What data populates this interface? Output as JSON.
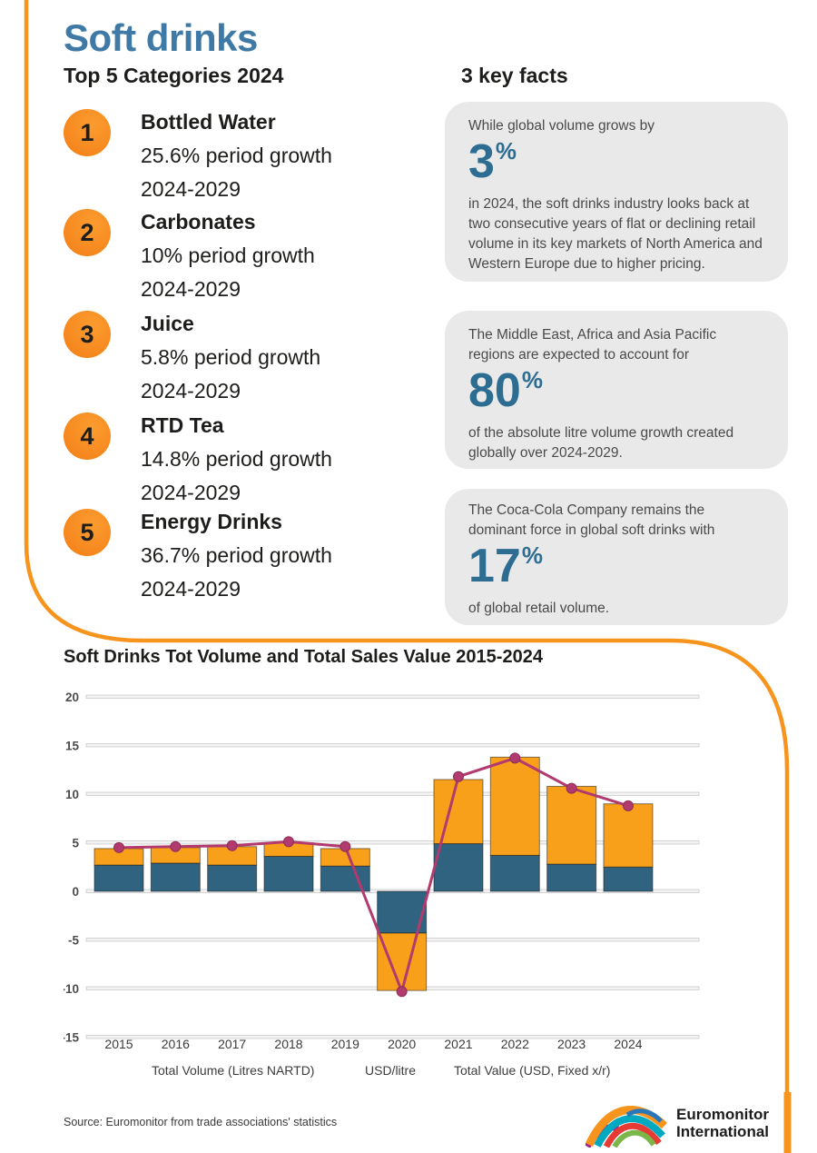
{
  "header": {
    "title": "Soft drinks",
    "left_heading": "Top 5 Categories 2024",
    "right_heading": "3 key facts"
  },
  "categories": [
    {
      "rank": "1",
      "name": "Bottled Water",
      "growth": "25.6% period growth",
      "period": "2024-2029"
    },
    {
      "rank": "2",
      "name": "Carbonates",
      "growth": "10% period growth",
      "period": "2024-2029"
    },
    {
      "rank": "3",
      "name": "Juice",
      "growth": "5.8% period growth",
      "period": "2024-2029"
    },
    {
      "rank": "4",
      "name": "RTD Tea",
      "growth": "14.8% period growth",
      "period": "2024-2029"
    },
    {
      "rank": "5",
      "name": "Energy Drinks",
      "growth": "36.7% period growth",
      "period": "2024-2029"
    }
  ],
  "facts": [
    {
      "intro": "While global volume grows by",
      "stat": "3",
      "unit": "%",
      "body": "in 2024, the soft drinks industry looks back at two consecutive years of flat or declining retail volume in its key markets of North America and Western Europe due to higher pricing."
    },
    {
      "intro": "The Middle East, Africa and Asia Pacific regions are expected to account for",
      "stat": "80",
      "unit": "%",
      "body": "of the absolute litre volume growth created globally over 2024-2029."
    },
    {
      "intro": "The Coca-Cola Company remains the dominant force in global soft drinks with",
      "stat": "17",
      "unit": "%",
      "body": "of global retail volume."
    }
  ],
  "chart": {
    "title": "Soft Drinks Tot Volume and Total Sales Value 2015-2024"
  },
  "chart_data": {
    "type": "combo: stacked bar + line",
    "title": "Soft Drinks Tot Volume and Total Sales Value 2015-2024",
    "categories": [
      "2015",
      "2016",
      "2017",
      "2018",
      "2019",
      "2020",
      "2021",
      "2022",
      "2023",
      "2024"
    ],
    "ylim": [
      -15,
      20
    ],
    "yticks": [
      20,
      15,
      10,
      5,
      0,
      -5,
      -10,
      -15
    ],
    "grid": true,
    "legend_position": "bottom",
    "series": [
      {
        "name": "Total Volume (Litres NARTD)",
        "type": "bar-stack",
        "color": "#2f637f",
        "values": [
          2.7,
          2.9,
          2.7,
          3.6,
          2.6,
          -4.3,
          4.9,
          3.7,
          2.8,
          2.5
        ]
      },
      {
        "name": "USD/litre",
        "type": "bar-stack",
        "color": "#f9a01b",
        "values": [
          1.7,
          1.6,
          1.9,
          1.4,
          1.8,
          -5.9,
          6.6,
          10.1,
          8.0,
          6.5
        ]
      },
      {
        "name": "Total Value (USD, Fixed x/r)",
        "type": "line",
        "color": "#b13a6e",
        "values": [
          4.5,
          4.6,
          4.7,
          5.1,
          4.6,
          -10.3,
          11.8,
          13.7,
          10.6,
          8.8
        ]
      }
    ]
  },
  "footer": {
    "source": "Source: Euromonitor from trade associations' statistics",
    "logo_line1": "Euromonitor",
    "logo_line2": "International"
  },
  "colors": {
    "accent_orange": "#f7941d",
    "title_blue": "#3e7aa5",
    "stat_blue": "#2e6d92",
    "bar_blue": "#2f637f",
    "bar_orange": "#f9a01b",
    "line_magenta": "#b13a6e",
    "card_gray": "#e9e9e9"
  }
}
